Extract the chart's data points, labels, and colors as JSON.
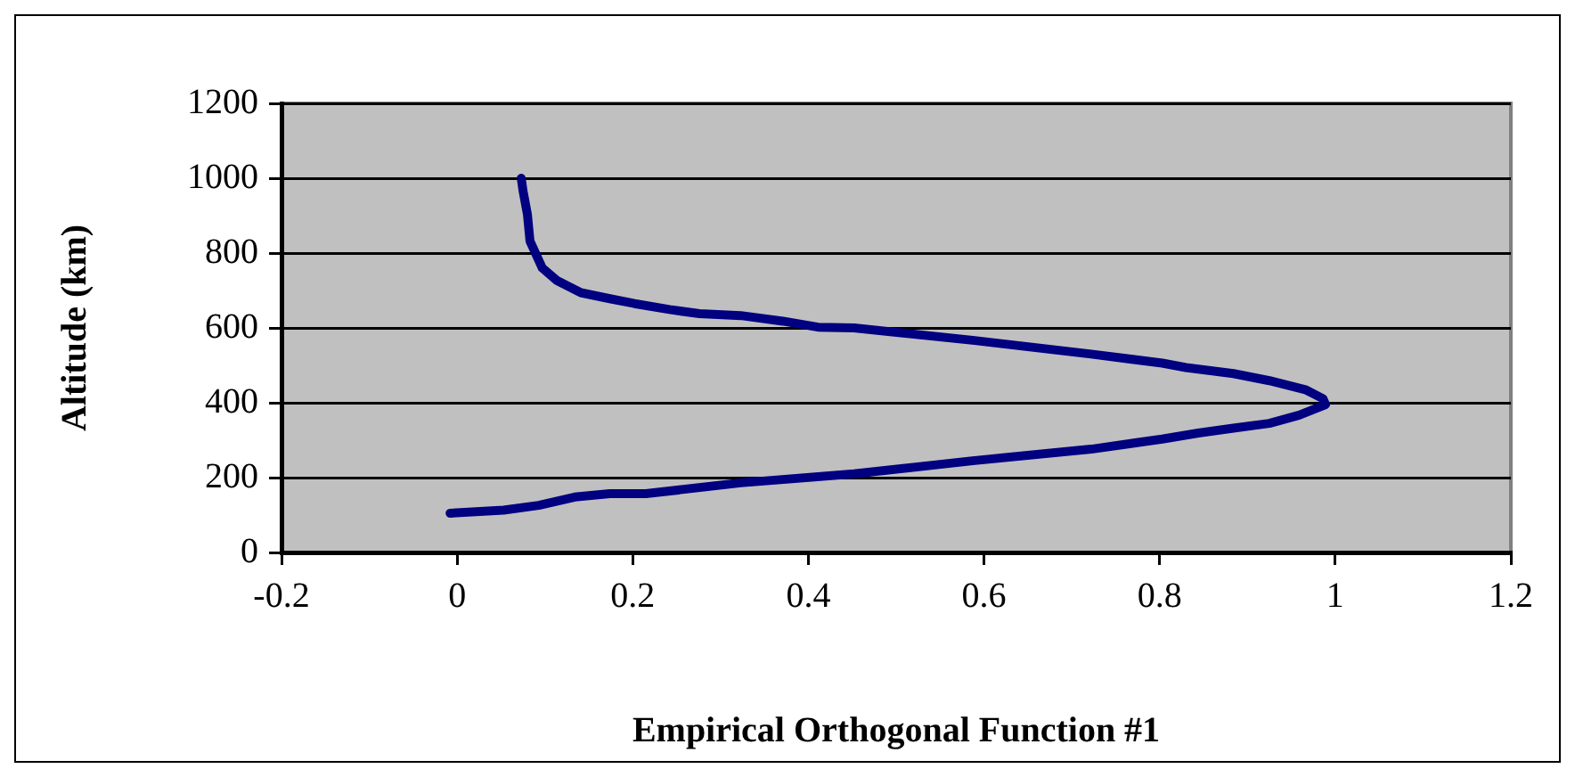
{
  "chart_data": {
    "type": "line",
    "xlabel": "Empirical Orthogonal Function #1",
    "ylabel": "Altitude (km)",
    "xlim": [
      -0.2,
      1.2
    ],
    "xticks": [
      -0.2,
      0,
      0.2,
      0.4,
      0.6,
      0.8,
      1,
      1.2
    ],
    "ylim": [
      0,
      1200
    ],
    "yticks": [
      0,
      200,
      400,
      600,
      800,
      1000,
      1200
    ],
    "grid": "y",
    "legend": false,
    "marker": "none",
    "line_style": "solid",
    "series": [
      {
        "color": "#000080",
        "x": [
          -0.008,
          0.053,
          0.093,
          0.134,
          0.174,
          0.215,
          0.323,
          0.452,
          0.587,
          0.722,
          0.803,
          0.844,
          0.884,
          0.925,
          0.959,
          0.989,
          0.986,
          0.966,
          0.925,
          0.884,
          0.83,
          0.803,
          0.722,
          0.587,
          0.452,
          0.411,
          0.371,
          0.323,
          0.276,
          0.242,
          0.202,
          0.174,
          0.141,
          0.114,
          0.097,
          0.083,
          0.08,
          0.075,
          0.073
        ],
        "values": [
          105,
          113,
          126,
          148,
          157,
          157,
          186,
          210,
          245,
          276,
          303,
          319,
          332,
          345,
          367,
          395,
          411,
          435,
          459,
          478,
          494,
          506,
          530,
          567,
          600,
          602,
          618,
          633,
          638,
          649,
          665,
          678,
          694,
          726,
          760,
          832,
          904,
          967,
          1000
        ]
      }
    ]
  }
}
